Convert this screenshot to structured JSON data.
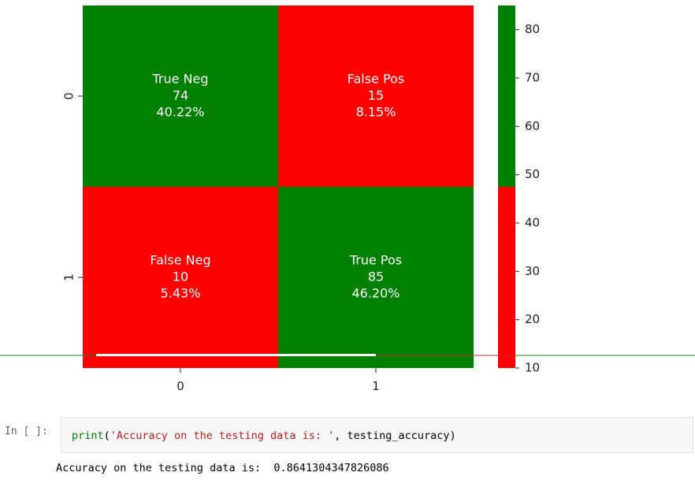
{
  "chart_data": {
    "type": "heatmap",
    "rows": [
      "0",
      "1"
    ],
    "cols": [
      "0",
      "1"
    ],
    "cells": [
      [
        {
          "group": "True Neg",
          "count": "74",
          "percent": "40.22%",
          "value": 74
        },
        {
          "group": "False Pos",
          "count": "15",
          "percent": "8.15%",
          "value": 15
        }
      ],
      [
        {
          "group": "False Neg",
          "count": "10",
          "percent": "5.43%",
          "value": 10
        },
        {
          "group": "True Pos",
          "count": "85",
          "percent": "46.20%",
          "value": 85
        }
      ]
    ],
    "colorbar": {
      "ticks": [
        "10",
        "20",
        "30",
        "40",
        "50",
        "60",
        "70",
        "80"
      ],
      "range": [
        10,
        85
      ],
      "colors": [
        {
          "from": 10,
          "to": 47.5,
          "color": "#ff0000"
        },
        {
          "from": 47.5,
          "to": 85,
          "color": "#008000"
        }
      ]
    }
  },
  "notebook": {
    "prompt": "In [ ]:",
    "code": {
      "builtin": "print",
      "open_paren": "(",
      "string": "'Accuracy on the testing data is: '",
      "rest": ", testing_accuracy",
      "close_paren": ")"
    },
    "output": "Accuracy on the testing data is:  0.8641304347826086"
  }
}
